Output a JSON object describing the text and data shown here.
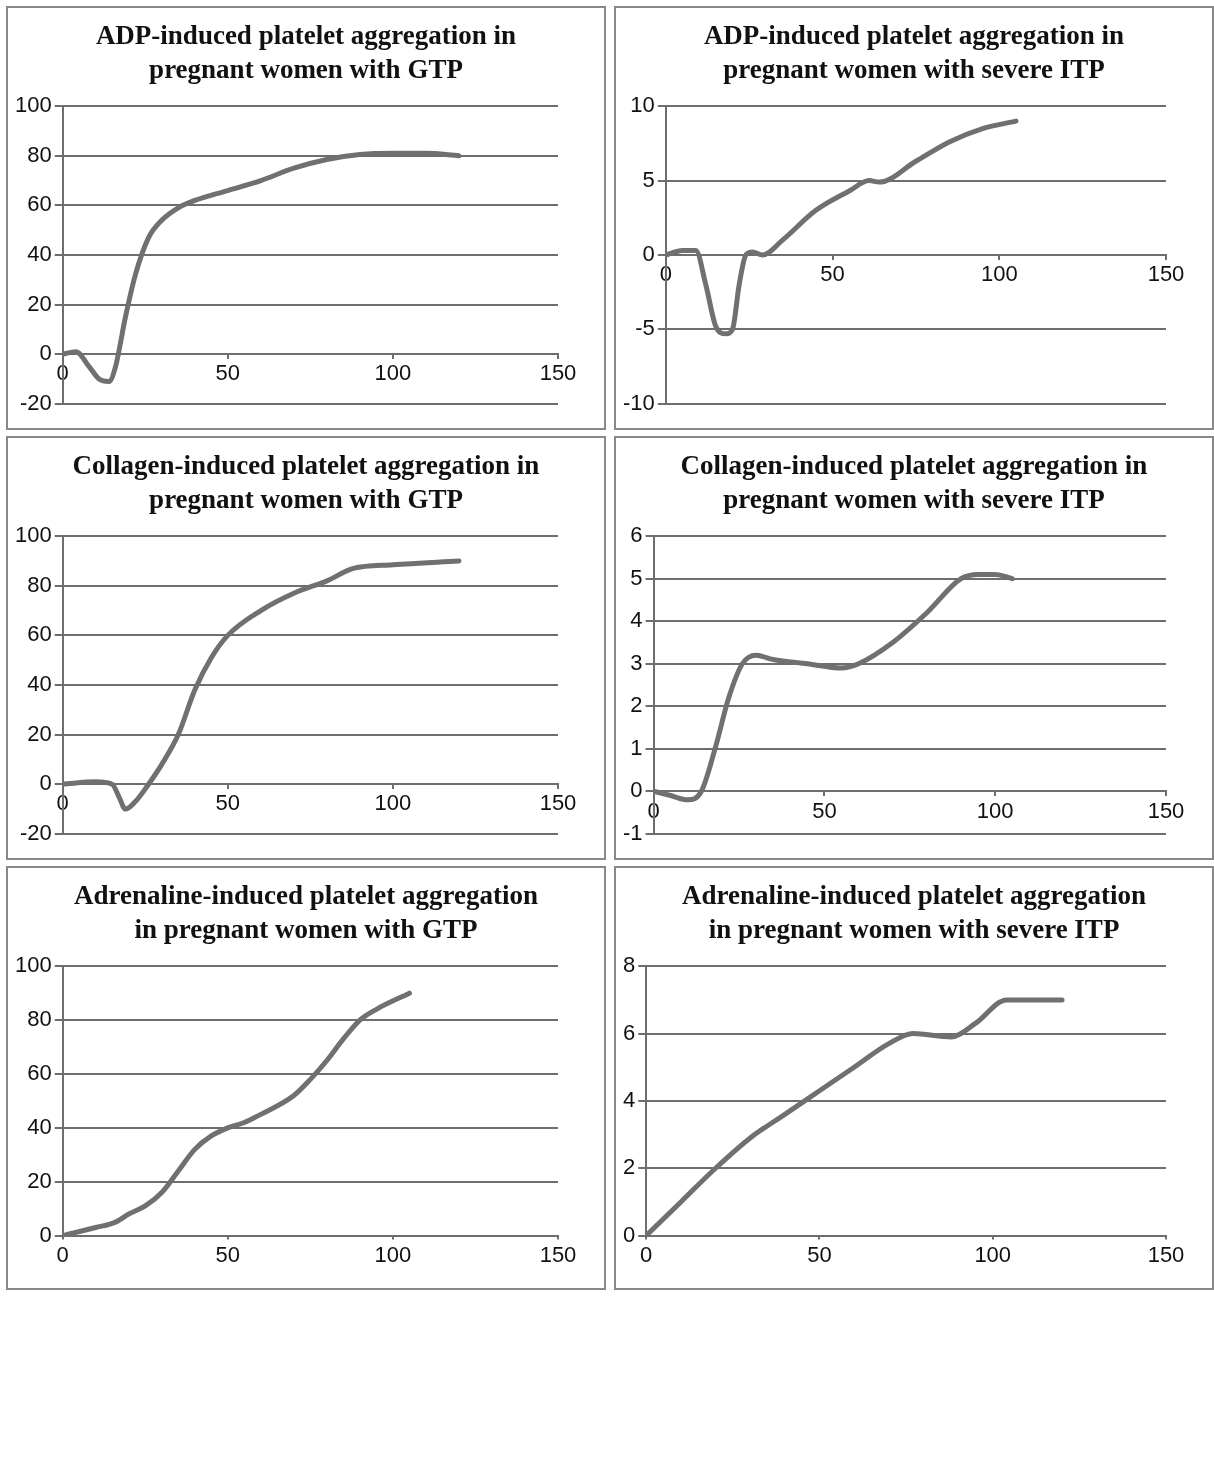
{
  "chart_data": [
    {
      "type": "line",
      "title": "ADP-induced platelet aggregation in pregnant women with GTP",
      "color": "#707070",
      "x": [
        0,
        4,
        8,
        11,
        14,
        16,
        19,
        22,
        26,
        30,
        35,
        40,
        50,
        60,
        70,
        80,
        90,
        100,
        110,
        120
      ],
      "values": [
        0,
        1,
        -5,
        -10,
        -11,
        -5,
        15,
        32,
        47,
        54,
        59,
        62,
        66,
        70,
        75,
        78.5,
        80.5,
        81,
        81,
        80
      ],
      "xlim": [
        0,
        150
      ],
      "xticks": [
        0,
        50,
        100,
        150
      ],
      "ylim": [
        -20,
        100
      ],
      "yticks": [
        -20,
        0,
        20,
        40,
        60,
        80,
        100
      ],
      "grid": "y"
    },
    {
      "type": "line",
      "title": "ADP-induced platelet aggregation in pregnant women with severe ITP",
      "color": "#707070",
      "x": [
        0,
        5,
        9,
        12,
        15,
        18,
        20,
        22,
        24,
        26,
        29,
        35,
        45,
        55,
        61,
        64,
        75,
        85,
        95,
        105
      ],
      "values": [
        0,
        0.3,
        0.3,
        -2,
        -4.8,
        -5.3,
        -5,
        -2,
        0,
        0.2,
        0,
        1,
        3,
        4.3,
        5,
        4.9,
        6.3,
        7.6,
        8.5,
        9
      ],
      "xlim": [
        0,
        150
      ],
      "xticks": [
        0,
        50,
        100,
        150
      ],
      "ylim": [
        -10,
        10
      ],
      "yticks": [
        -10,
        -5,
        0,
        5,
        10
      ],
      "grid": "y"
    },
    {
      "type": "line",
      "title": "Collagen-induced platelet aggregation in pregnant women with GTP",
      "color": "#707070",
      "x": [
        0,
        10,
        15,
        17,
        19,
        22,
        26,
        30,
        35,
        40,
        45,
        50,
        60,
        70,
        80,
        88,
        100,
        120
      ],
      "values": [
        0,
        1,
        0,
        -5,
        -10,
        -7,
        0,
        8,
        20,
        38,
        51,
        60,
        70,
        77,
        82,
        87,
        88.5,
        90
      ],
      "xlim": [
        0,
        150
      ],
      "xticks": [
        0,
        50,
        100,
        150
      ],
      "ylim": [
        -20,
        100
      ],
      "yticks": [
        -20,
        0,
        20,
        40,
        60,
        80,
        100
      ],
      "grid": "y"
    },
    {
      "type": "line",
      "title": "Collagen-induced platelet aggregation in pregnant women with severe ITP",
      "color": "#707070",
      "x": [
        0,
        5,
        10,
        14,
        18,
        22,
        26,
        30,
        35,
        45,
        55,
        60,
        70,
        80,
        90,
        95,
        100,
        105
      ],
      "values": [
        0,
        -0.1,
        -0.2,
        0,
        1,
        2.2,
        3,
        3.2,
        3.1,
        3,
        2.9,
        3,
        3.5,
        4.2,
        5,
        5.1,
        5.1,
        5
      ],
      "xlim": [
        0,
        150
      ],
      "xticks": [
        0,
        50,
        100,
        150
      ],
      "ylim": [
        -1,
        6
      ],
      "yticks": [
        -1,
        0,
        1,
        2,
        3,
        4,
        5,
        6
      ],
      "grid": "y"
    },
    {
      "type": "line",
      "title": "Adrenaline-induced platelet aggregation in pregnant women with GTP",
      "color": "#707070",
      "x": [
        0,
        10,
        16,
        20,
        25,
        30,
        35,
        40,
        45,
        50,
        55,
        60,
        70,
        75,
        80,
        85,
        90,
        95,
        105
      ],
      "values": [
        0,
        3,
        5,
        8,
        11,
        16,
        24,
        32,
        37,
        40,
        42,
        45,
        52,
        58,
        65,
        73,
        80,
        84,
        90
      ],
      "xlim": [
        0,
        150
      ],
      "xticks": [
        0,
        50,
        100,
        150
      ],
      "ylim": [
        0,
        100
      ],
      "yticks": [
        0,
        20,
        40,
        60,
        80,
        100
      ],
      "grid": "y"
    },
    {
      "type": "line",
      "title": "Adrenaline-induced platelet aggregation in pregnant women with severe ITP",
      "color": "#707070",
      "x": [
        0,
        10,
        20,
        30,
        40,
        50,
        60,
        70,
        77,
        88,
        95,
        104,
        110,
        120
      ],
      "values": [
        0,
        1,
        2,
        2.9,
        3.6,
        4.3,
        5,
        5.7,
        6,
        5.9,
        6.3,
        7,
        7,
        7
      ],
      "xlim": [
        0,
        150
      ],
      "xticks": [
        0,
        50,
        100,
        150
      ],
      "ylim": [
        0,
        8
      ],
      "yticks": [
        0,
        2,
        4,
        6,
        8
      ],
      "grid": "y"
    }
  ]
}
